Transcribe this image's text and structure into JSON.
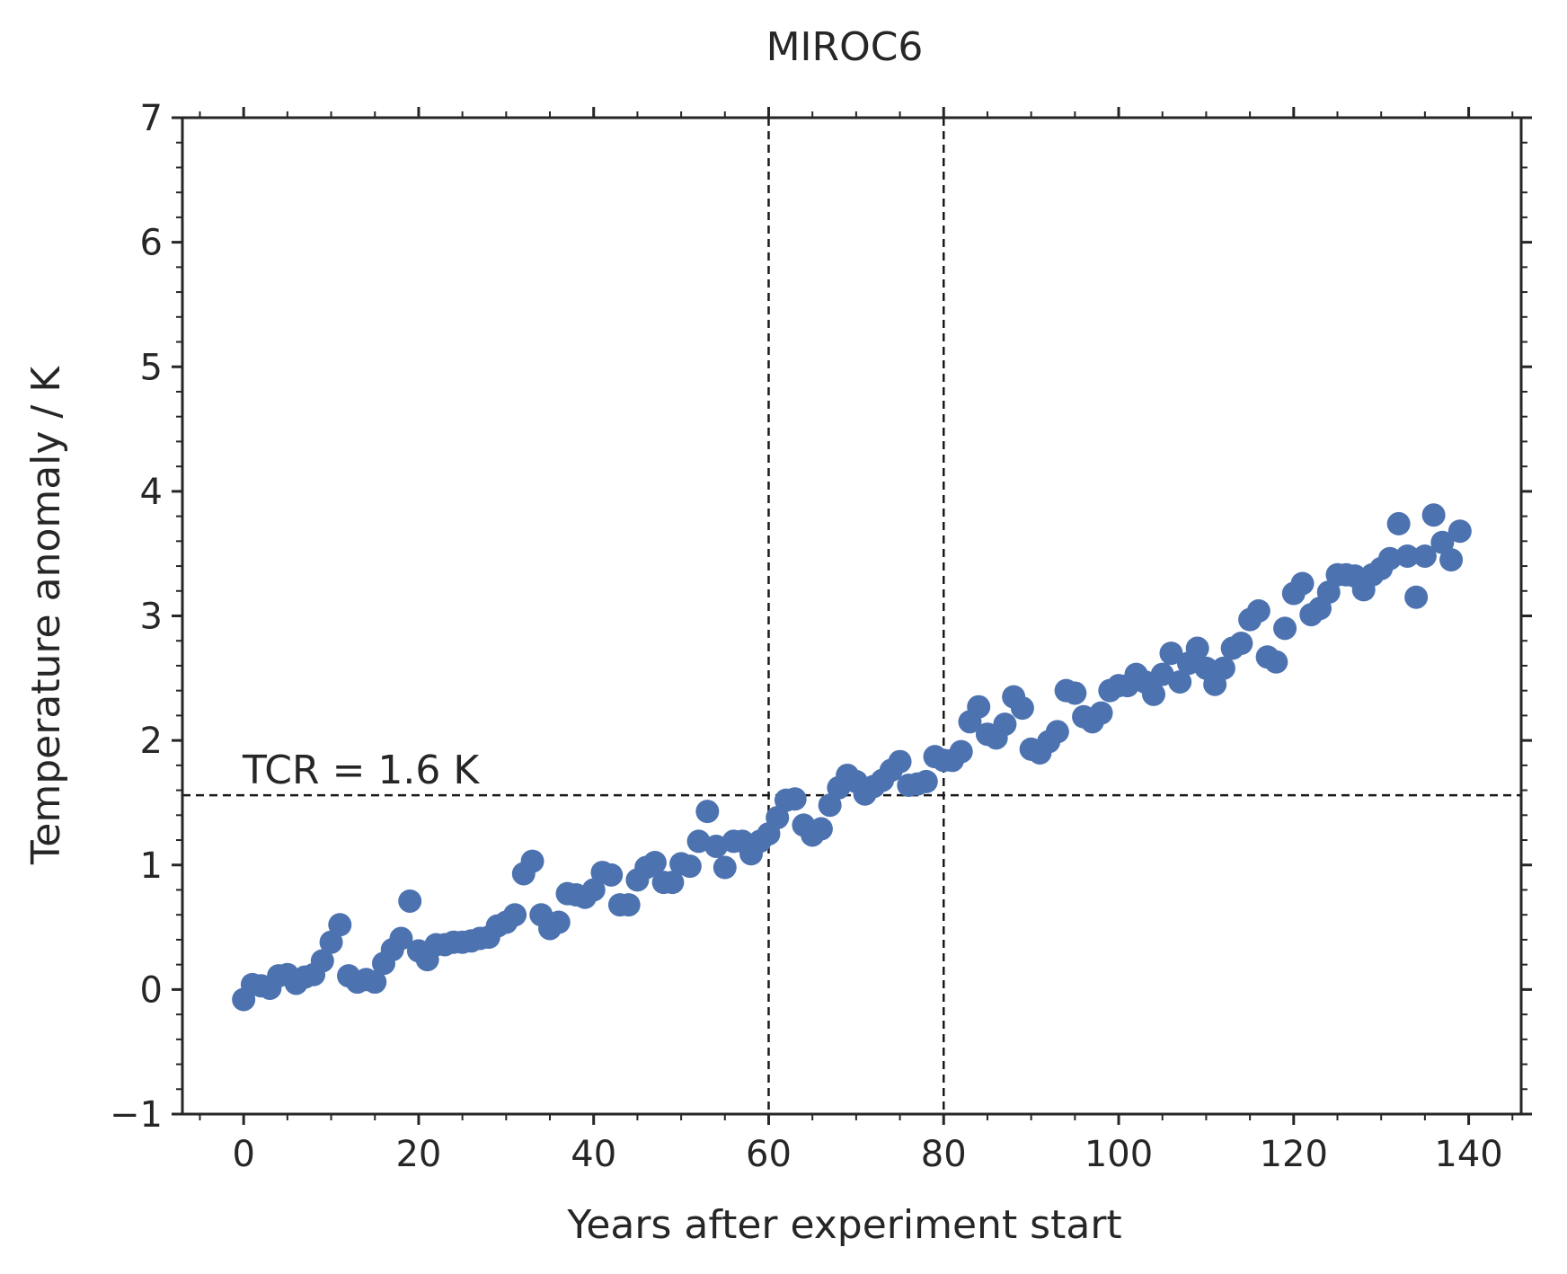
{
  "chart_data": {
    "type": "scatter",
    "title": "MIROC6",
    "xlabel": "Years after experiment start",
    "ylabel": "Temperature anomaly / K",
    "xlim": [
      -7,
      146
    ],
    "ylim": [
      -1,
      7
    ],
    "xticks": [
      0,
      20,
      40,
      60,
      80,
      100,
      120,
      140
    ],
    "xtick_labels": [
      "0",
      "20",
      "40",
      "60",
      "80",
      "100",
      "120",
      "140"
    ],
    "yticks": [
      -1,
      0,
      1,
      2,
      3,
      4,
      5,
      6,
      7
    ],
    "ytick_labels": [
      "−1",
      "0",
      "1",
      "2",
      "3",
      "4",
      "5",
      "6",
      "7"
    ],
    "grid": false,
    "marker_color": "#4c72b0",
    "line_color": "#1a1a1a",
    "vlines": [
      60,
      80
    ],
    "hline": 1.56,
    "annotation": {
      "text": "TCR = 1.6 K",
      "x": 0,
      "y": 1.6
    },
    "x": [
      0,
      1,
      2,
      3,
      4,
      5,
      6,
      7,
      8,
      9,
      10,
      11,
      12,
      13,
      14,
      15,
      16,
      17,
      18,
      19,
      20,
      21,
      22,
      23,
      24,
      25,
      26,
      27,
      28,
      29,
      30,
      31,
      32,
      33,
      34,
      35,
      36,
      37,
      38,
      39,
      40,
      41,
      42,
      43,
      44,
      45,
      46,
      47,
      48,
      49,
      50,
      51,
      52,
      53,
      54,
      55,
      56,
      57,
      58,
      59,
      60,
      61,
      62,
      63,
      64,
      65,
      66,
      67,
      68,
      69,
      70,
      71,
      72,
      73,
      74,
      75,
      76,
      77,
      78,
      79,
      80,
      81,
      82,
      83,
      84,
      85,
      86,
      87,
      88,
      89,
      90,
      91,
      92,
      93,
      94,
      95,
      96,
      97,
      98,
      99,
      100,
      101,
      102,
      103,
      104,
      105,
      106,
      107,
      108,
      109,
      110,
      111,
      112,
      113,
      114,
      115,
      116,
      117,
      118,
      119,
      120,
      121,
      122,
      123,
      124,
      125,
      126,
      127,
      128,
      129,
      130,
      131,
      132,
      133,
      134,
      135,
      136,
      137,
      138,
      139
    ],
    "y": [
      -0.08,
      0.04,
      0.03,
      0.01,
      0.11,
      0.12,
      0.05,
      0.1,
      0.12,
      0.23,
      0.38,
      0.52,
      0.11,
      0.06,
      0.08,
      0.06,
      0.21,
      0.32,
      0.41,
      0.71,
      0.31,
      0.24,
      0.36,
      0.36,
      0.38,
      0.38,
      0.39,
      0.41,
      0.42,
      0.51,
      0.54,
      0.6,
      0.93,
      1.03,
      0.6,
      0.49,
      0.54,
      0.77,
      0.76,
      0.74,
      0.8,
      0.94,
      0.92,
      0.68,
      0.68,
      0.88,
      0.98,
      1.02,
      0.86,
      0.86,
      1.01,
      0.99,
      1.19,
      1.43,
      1.15,
      0.98,
      1.19,
      1.19,
      1.09,
      1.19,
      1.25,
      1.38,
      1.52,
      1.53,
      1.32,
      1.24,
      1.29,
      1.48,
      1.62,
      1.72,
      1.67,
      1.57,
      1.63,
      1.68,
      1.76,
      1.83,
      1.64,
      1.65,
      1.67,
      1.87,
      1.84,
      1.84,
      1.91,
      2.15,
      2.27,
      2.05,
      2.02,
      2.13,
      2.35,
      2.26,
      1.93,
      1.9,
      1.99,
      2.07,
      2.4,
      2.38,
      2.19,
      2.15,
      2.22,
      2.4,
      2.44,
      2.44,
      2.53,
      2.47,
      2.37,
      2.53,
      2.7,
      2.47,
      2.62,
      2.74,
      2.58,
      2.45,
      2.58,
      2.74,
      2.78,
      2.97,
      3.04,
      2.67,
      2.63,
      2.9,
      3.18,
      3.26,
      3.01,
      3.06,
      3.19,
      3.33,
      3.33,
      3.32,
      3.21,
      3.33,
      3.38,
      3.46,
      3.74,
      3.48,
      3.15,
      3.48,
      3.81,
      3.59,
      3.45,
      3.68
    ]
  }
}
